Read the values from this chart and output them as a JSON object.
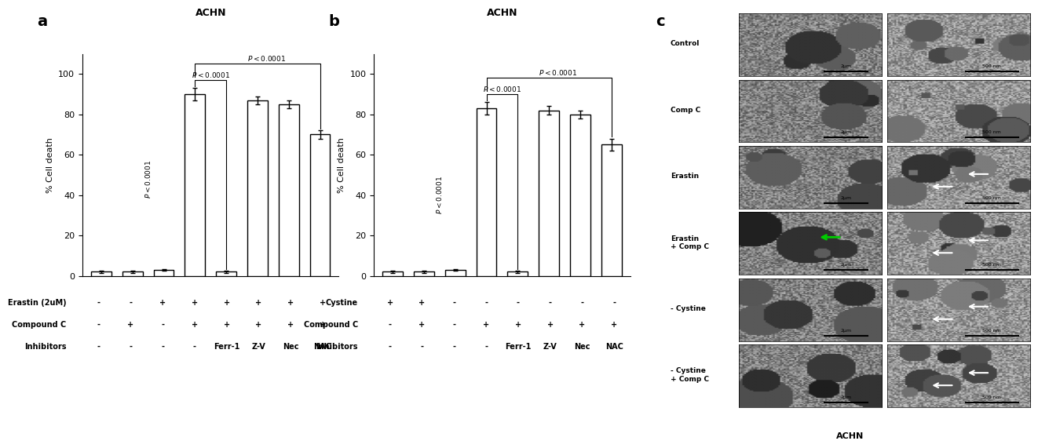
{
  "panel_a": {
    "title": "ACHN",
    "ylabel": "% Cell death",
    "ylim": [
      0,
      110
    ],
    "yticks": [
      0,
      20,
      40,
      60,
      80,
      100
    ],
    "bar_values": [
      2,
      2,
      3,
      90,
      2,
      87,
      85,
      70
    ],
    "bar_errors": [
      0.5,
      0.5,
      0.5,
      3,
      0.5,
      2,
      2,
      2
    ],
    "row1_label": "Erastin (2uM)",
    "row2_label": "Compound C",
    "row3_label": "Inhibitors",
    "row1_vals": [
      "-",
      "-",
      "+",
      "+",
      "+",
      "+",
      "+",
      "+"
    ],
    "row2_vals": [
      "-",
      "+",
      "-",
      "+",
      "+",
      "+",
      "+",
      "+"
    ],
    "row3_vals": [
      "-",
      "-",
      "-",
      "-",
      "Ferr-1",
      "Z-V",
      "Nec",
      "NAC"
    ]
  },
  "panel_b": {
    "title": "ACHN",
    "ylabel": "% Cell death",
    "ylim": [
      0,
      110
    ],
    "yticks": [
      0,
      20,
      40,
      60,
      80,
      100
    ],
    "bar_values": [
      2,
      2,
      3,
      83,
      2,
      82,
      80,
      65
    ],
    "bar_errors": [
      0.5,
      0.5,
      0.5,
      3,
      0.5,
      2,
      2,
      3
    ],
    "row1_label": "Cystine",
    "row2_label": "Compound C",
    "row3_label": "Inhibitors",
    "row1_vals": [
      "+",
      "+",
      "-",
      "-",
      "-",
      "-",
      "-",
      "-"
    ],
    "row2_vals": [
      "-",
      "+",
      "-",
      "+",
      "+",
      "+",
      "+",
      "+"
    ],
    "row3_vals": [
      "-",
      "-",
      "-",
      "-",
      "Ferr-1",
      "Z-V",
      "Nec",
      "NAC"
    ]
  },
  "panel_c_labels": [
    "Control",
    "Comp C",
    "Erastin",
    "Erastin\n+ Comp C",
    "- Cystine",
    "- Cystine\n+ Comp C"
  ],
  "panel_c_bottom_label": "ACHN",
  "bar_color": "#ffffff",
  "bar_edgecolor": "#000000",
  "background_color": "#ffffff",
  "font_color": "#000000",
  "ellipse_color": "#00cc00",
  "figsize": [
    12.8,
    5.66
  ]
}
